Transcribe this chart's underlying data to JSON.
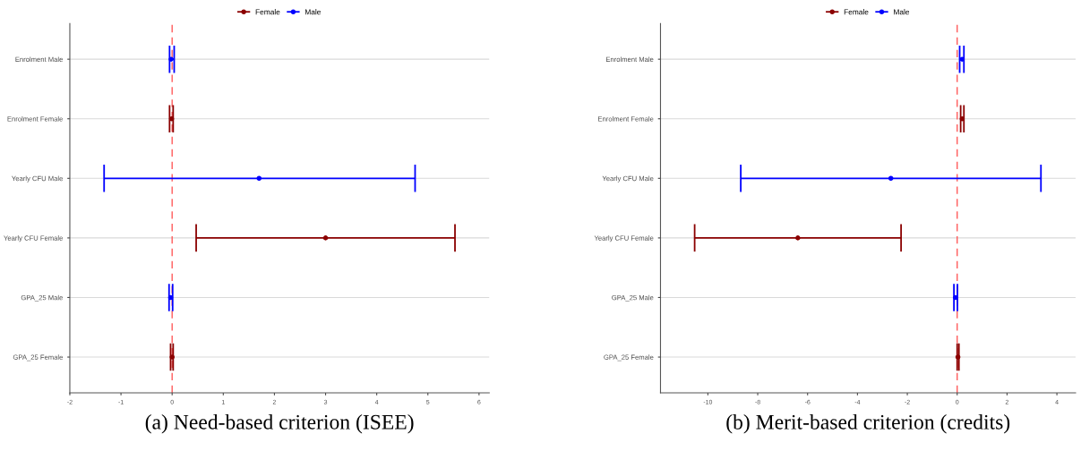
{
  "chart_data": [
    {
      "type": "scatter",
      "orientation": "horizontal",
      "annotations": [
        "(a) Need-based criterion (ISEE)"
      ],
      "categories": [
        "Enrolment Male",
        "Enrolment Female",
        "Yearly CFU Male",
        "Yearly CFU Female",
        "GPA_25 Male",
        "GPA_25 Female"
      ],
      "series": [
        {
          "name": "Female",
          "color": "#8b0000",
          "values": [
            null,
            -0.01,
            null,
            3.0,
            null,
            0.0
          ],
          "errors": [
            null,
            [
              -0.05,
              0.02
            ],
            null,
            [
              0.47,
              5.53
            ],
            null,
            [
              -0.03,
              0.02
            ]
          ]
        },
        {
          "name": "Male",
          "color": "#0000ff",
          "values": [
            -0.02,
            null,
            1.7,
            null,
            -0.03,
            null
          ],
          "errors": [
            [
              -0.05,
              0.04
            ],
            null,
            [
              -1.33,
              4.75
            ],
            null,
            [
              -0.06,
              0.01
            ],
            null
          ]
        }
      ],
      "xlim": [
        -2,
        6.2
      ],
      "xticks": [
        -2,
        -1,
        0,
        1,
        2,
        3,
        4,
        5,
        6
      ],
      "ref_lines": [
        {
          "axis": "x",
          "value": 0,
          "color": "#ff5a5a",
          "line_style": "dashed"
        }
      ],
      "grid": "y",
      "legend": "top",
      "marker": "circle"
    },
    {
      "type": "scatter",
      "orientation": "horizontal",
      "annotations": [
        "(b) Merit-based criterion (credits)"
      ],
      "categories": [
        "Enrolment Male",
        "Enrolment Female",
        "Yearly CFU Male",
        "Yearly CFU Female",
        "GPA_25 Male",
        "GPA_25 Female"
      ],
      "series": [
        {
          "name": "Female",
          "color": "#8b0000",
          "values": [
            null,
            0.2,
            null,
            -6.39,
            null,
            0.03
          ],
          "errors": [
            null,
            [
              0.14,
              0.27
            ],
            null,
            [
              -10.53,
              -2.25
            ],
            null,
            [
              0.0,
              0.07
            ]
          ]
        },
        {
          "name": "Male",
          "color": "#0000ff",
          "values": [
            0.2,
            null,
            -2.66,
            null,
            -0.07,
            null
          ],
          "errors": [
            [
              0.1,
              0.27
            ],
            null,
            [
              -8.68,
              3.36
            ],
            null,
            [
              -0.13,
              0.01
            ],
            null
          ]
        }
      ],
      "xlim": [
        -11.9,
        4.75
      ],
      "xticks": [
        -10,
        -8,
        -6,
        -4,
        -2,
        0,
        2,
        4
      ],
      "ref_lines": [
        {
          "axis": "x",
          "value": 0,
          "color": "#ff5a5a",
          "line_style": "dashed"
        }
      ],
      "grid": "y",
      "legend": "top",
      "marker": "circle"
    }
  ]
}
